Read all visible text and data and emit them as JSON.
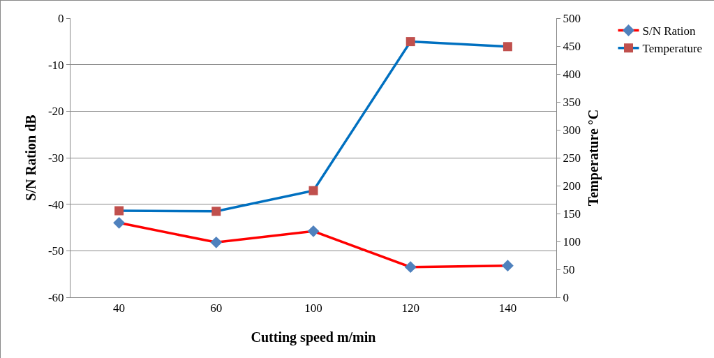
{
  "chart_data": {
    "type": "line",
    "xlabel": "Cutting speed m/min",
    "ylabel": "S/N Ration dB",
    "y2label": "Temperature °C",
    "categories": [
      "40",
      "60",
      "100",
      "120",
      "140"
    ],
    "series": [
      {
        "name": "S/N Ration",
        "color": "#ff0000",
        "colors": [
          "#4f81bd",
          "#4f81bd",
          "#4f81bd",
          "#4f81bd",
          "#4f81bd"
        ],
        "marker": "diamond",
        "values": [
          -44.0,
          -48.2,
          -45.8,
          -53.5,
          -53.2
        ]
      },
      {
        "name": "Temperature",
        "color": "#0070c0",
        "colors": [
          "#c0504d",
          "#c0504d",
          "#c0504d",
          "#c0504d",
          "#c0504d"
        ],
        "marker": "square",
        "axis": "y2",
        "values": [
          155,
          154,
          191,
          458,
          449
        ]
      }
    ],
    "ylim": [
      -60,
      0
    ],
    "yticks": [
      -60,
      -50,
      -40,
      -30,
      -20,
      -10,
      0
    ],
    "y2lim": [
      0,
      500
    ],
    "y2ticks": [
      0,
      50,
      100,
      150,
      200,
      250,
      300,
      350,
      400,
      450,
      500
    ],
    "grid": "y",
    "legend": "top right",
    "line_style": "solid"
  }
}
